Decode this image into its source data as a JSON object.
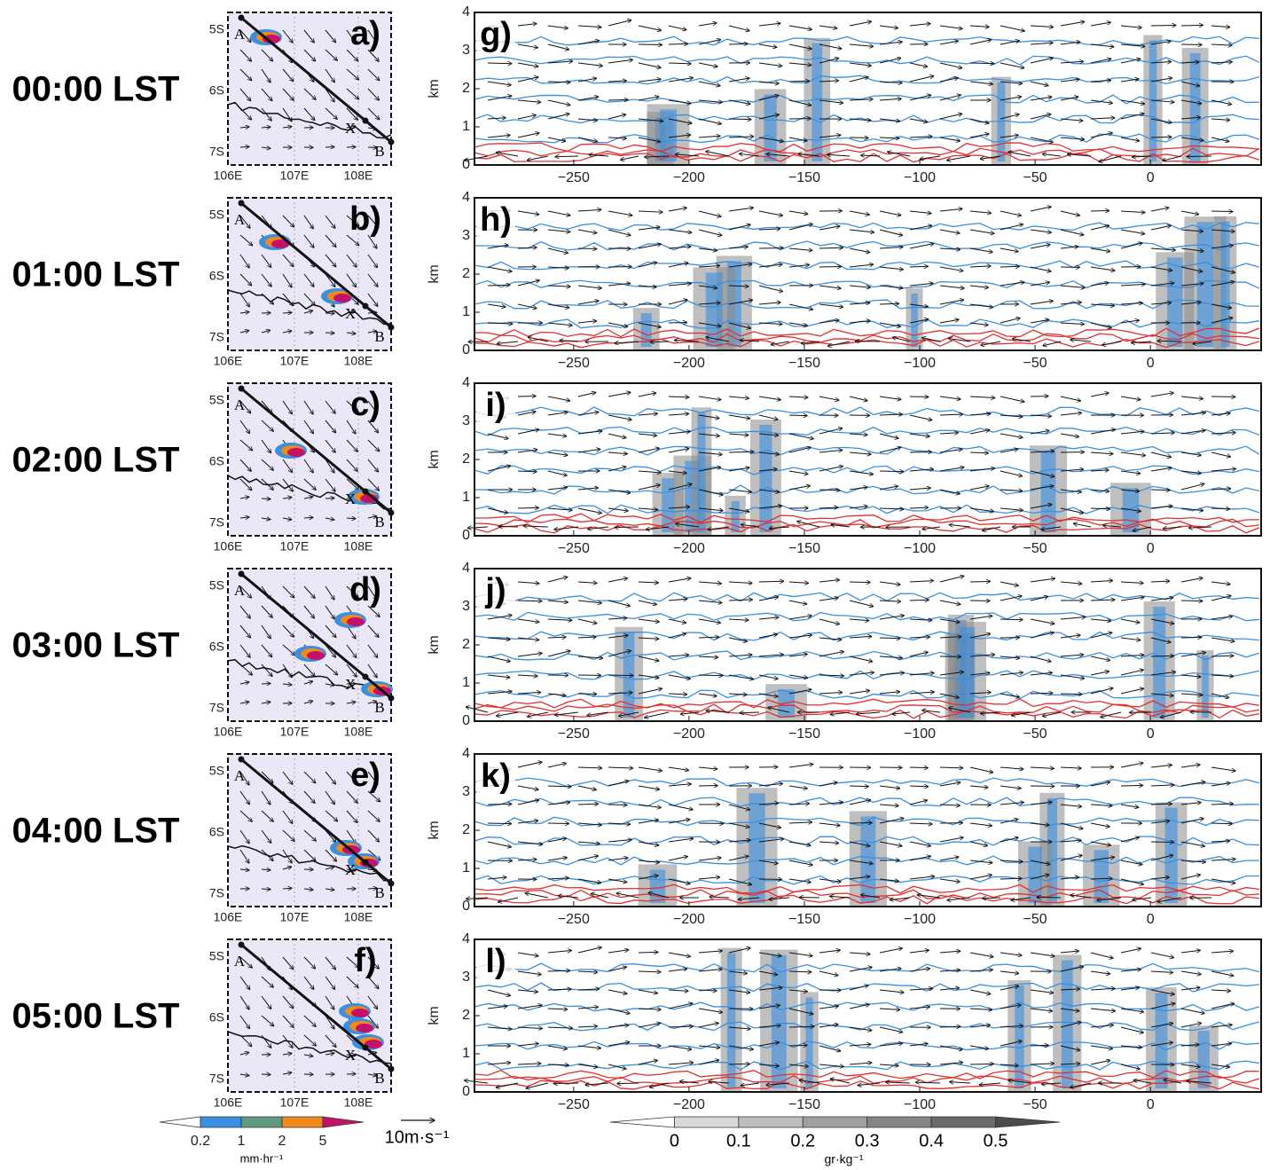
{
  "map": {
    "lat_ticks": [
      "5S",
      "6S",
      "7S"
    ],
    "lon_ticks": [
      "106E",
      "107E",
      "108E"
    ],
    "points": [
      "A",
      "X",
      "B"
    ]
  },
  "rows": [
    {
      "time": "00:00 LST",
      "map_label": "a)"
    },
    {
      "time": "01:00 LST",
      "map_label": "b)"
    },
    {
      "time": "02:00 LST",
      "map_label": "c)"
    },
    {
      "time": "03:00 LST",
      "map_label": "d)"
    },
    {
      "time": "04:00 LST",
      "map_label": "e)"
    },
    {
      "time": "05:00 LST",
      "map_label": "f)"
    }
  ],
  "chart_data": [
    {
      "type": "contour",
      "title": "g)",
      "y_label": "km",
      "xlim": [
        -293,
        48
      ],
      "ylim": [
        0,
        4
      ],
      "xticks": [
        {
          "value": -250,
          "label": "−250"
        },
        {
          "value": -200,
          "label": "−200"
        },
        {
          "value": -150,
          "label": "−150"
        },
        {
          "value": -100,
          "label": "−100"
        },
        {
          "value": -50,
          "label": "−50"
        },
        0
      ],
      "yticks": [
        0,
        1,
        2,
        3,
        4
      ]
    },
    {
      "type": "contour",
      "title": "h)",
      "y_label": "km",
      "xlim": [
        -293,
        48
      ],
      "ylim": [
        0,
        4
      ],
      "xticks": [
        {
          "value": -250,
          "label": "−250"
        },
        {
          "value": -200,
          "label": "−200"
        },
        {
          "value": -150,
          "label": "−150"
        },
        {
          "value": -100,
          "label": "−100"
        },
        {
          "value": -50,
          "label": "−50"
        },
        0
      ],
      "yticks": [
        0,
        1,
        2,
        3,
        4
      ]
    },
    {
      "type": "contour",
      "title": "i)",
      "y_label": "km",
      "xlim": [
        -293,
        48
      ],
      "ylim": [
        0,
        4
      ],
      "xticks": [
        {
          "value": -250,
          "label": "−250"
        },
        {
          "value": -200,
          "label": "−200"
        },
        {
          "value": -150,
          "label": "−150"
        },
        {
          "value": -100,
          "label": "−100"
        },
        {
          "value": -50,
          "label": "−50"
        },
        0
      ],
      "yticks": [
        0,
        1,
        2,
        3,
        4
      ]
    },
    {
      "type": "contour",
      "title": "j)",
      "y_label": "km",
      "xlim": [
        -293,
        48
      ],
      "ylim": [
        0,
        4
      ],
      "xticks": [
        {
          "value": -250,
          "label": "−250"
        },
        {
          "value": -200,
          "label": "−200"
        },
        {
          "value": -150,
          "label": "−150"
        },
        {
          "value": -100,
          "label": "−100"
        },
        {
          "value": -50,
          "label": "−50"
        },
        0
      ],
      "yticks": [
        0,
        1,
        2,
        3,
        4
      ]
    },
    {
      "type": "contour",
      "title": "k)",
      "y_label": "km",
      "xlim": [
        -293,
        48
      ],
      "ylim": [
        0,
        4
      ],
      "xticks": [
        {
          "value": -250,
          "label": "−250"
        },
        {
          "value": -200,
          "label": "−200"
        },
        {
          "value": -150,
          "label": "−150"
        },
        {
          "value": -100,
          "label": "−100"
        },
        {
          "value": -50,
          "label": "−50"
        },
        0
      ],
      "yticks": [
        0,
        1,
        2,
        3,
        4
      ]
    },
    {
      "type": "contour",
      "title": "l)",
      "y_label": "km",
      "xlim": [
        -293,
        48
      ],
      "ylim": [
        0,
        4
      ],
      "xticks": [
        {
          "value": -250,
          "label": "−250"
        },
        {
          "value": -200,
          "label": "−200"
        },
        {
          "value": -150,
          "label": "−150"
        },
        {
          "value": -100,
          "label": "−100"
        },
        {
          "value": -50,
          "label": "−50"
        },
        0
      ],
      "yticks": [
        0,
        1,
        2,
        3,
        4
      ]
    }
  ],
  "precip_legend": {
    "ticks": [
      "0.2",
      "1",
      "2",
      "5"
    ],
    "colors": [
      "#ffffff",
      "#3b8fe0",
      "#5f9a80",
      "#f08a1c",
      "#c4126a"
    ],
    "unit": "mm·hr⁻¹"
  },
  "vector_reference": "10m·s⁻¹",
  "mixing_legend": {
    "ticks": [
      0,
      0.1,
      0.2,
      0.3,
      0.4,
      0.5
    ],
    "colors": [
      "#ffffff",
      "#d8d8d8",
      "#bdbdbd",
      "#a0a0a0",
      "#858585",
      "#6a6a6a",
      "#4c4c4c"
    ],
    "unit": "gr·kg⁻¹"
  }
}
